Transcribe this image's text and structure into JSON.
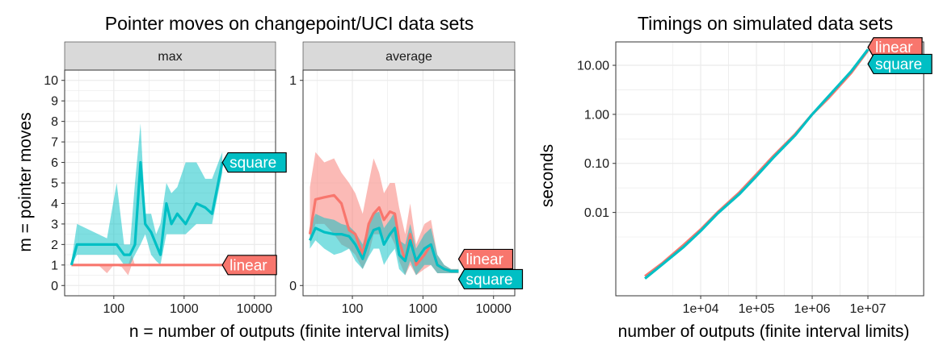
{
  "colors": {
    "linear": "#F8766D",
    "square": "#00BFC4",
    "strip": "#D9D9D9",
    "grid": "#EBEBEB"
  },
  "chart_data": [
    {
      "type": "line",
      "title": "Pointer moves on changepoint/UCI data sets",
      "xlabel": "n = number of outputs (finite interval limits)",
      "ylabel": "m = pointer moves",
      "xscale": "log10",
      "xlim": [
        20,
        20000
      ],
      "xticks": [
        100,
        1000,
        10000
      ],
      "xtick_labels": [
        "100",
        "1000",
        "10000"
      ],
      "grid": true,
      "legend": "direct labels",
      "panels": [
        {
          "strip": "max",
          "ylim": [
            -0.5,
            10.5
          ],
          "yticks": [
            0,
            1,
            2,
            3,
            4,
            5,
            6,
            7,
            8,
            9,
            10
          ],
          "ytick_labels": [
            "0",
            "1",
            "2",
            "3",
            "4",
            "5",
            "6",
            "7",
            "8",
            "9",
            "10"
          ],
          "series": [
            {
              "name": "linear",
              "x": [
                25,
                3500
              ],
              "y": [
                1,
                1
              ],
              "band_x": [
                25,
                60,
                80,
                100,
                130,
                160,
                180,
                200,
                3500
              ],
              "band_lo": [
                1,
                1,
                0.6,
                1,
                0.9,
                0.5,
                1,
                1,
                1
              ],
              "band_hi": [
                1,
                1,
                1,
                1,
                1,
                1,
                1.5,
                1,
                1
              ],
              "end_label": "linear"
            },
            {
              "name": "square",
              "x": [
                25,
                30,
                80,
                110,
                140,
                170,
                200,
                240,
                280,
                340,
                400,
                460,
                560,
                660,
                800,
                1050,
                1500,
                2000,
                2500,
                3500
              ],
              "y": [
                1,
                2,
                2,
                2,
                1.5,
                1.5,
                2,
                6,
                3,
                2.6,
                2,
                1.5,
                4,
                3,
                3.5,
                3,
                4,
                3.8,
                3.5,
                6
              ],
              "band_x": [
                25,
                30,
                80,
                110,
                140,
                170,
                200,
                240,
                280,
                340,
                400,
                460,
                560,
                660,
                800,
                1050,
                1500,
                2000,
                2500,
                3500
              ],
              "band_lo": [
                1,
                1.5,
                1.5,
                1.5,
                1,
                1,
                1.5,
                2,
                2.5,
                1.5,
                1.2,
                1,
                2.5,
                2.5,
                2.5,
                2.5,
                3,
                3,
                3,
                5.5
              ],
              "band_hi": [
                1.2,
                3,
                2.3,
                5,
                2,
                2,
                5,
                7.9,
                3.5,
                3.5,
                2.5,
                3,
                5,
                4.5,
                4.8,
                6,
                6,
                5.2,
                5.2,
                6.5
              ],
              "end_label": "square"
            }
          ]
        },
        {
          "strip": "average",
          "ylim": [
            -0.05,
            1.05
          ],
          "yticks": [
            0,
            1
          ],
          "ytick_labels": [
            "0",
            "1"
          ],
          "series": [
            {
              "name": "linear",
              "x": [
                25,
                30,
                40,
                55,
                70,
                90,
                110,
                140,
                170,
                200,
                240,
                280,
                340,
                400,
                460,
                560,
                660,
                800,
                1050,
                1300,
                1600,
                2000,
                2500,
                3200
              ],
              "y": [
                0.25,
                0.42,
                0.43,
                0.44,
                0.4,
                0.27,
                0.25,
                0.15,
                0.3,
                0.35,
                0.38,
                0.32,
                0.36,
                0.35,
                0.22,
                0.12,
                0.25,
                0.1,
                0.15,
                0.2,
                0.1,
                0.08,
                0.07,
                0.07
              ],
              "band_x": [
                25,
                30,
                40,
                55,
                70,
                90,
                110,
                140,
                170,
                200,
                240,
                280,
                340,
                400,
                460,
                560,
                660,
                800,
                1050,
                1300,
                1600,
                2000,
                2500,
                3200
              ],
              "band_lo": [
                0.2,
                0.3,
                0.3,
                0.25,
                0.2,
                0.18,
                0.15,
                0.08,
                0.15,
                0.25,
                0.25,
                0.22,
                0.25,
                0.2,
                0.12,
                0.05,
                0.1,
                0.05,
                0.08,
                0.1,
                0.06,
                0.06,
                0.06,
                0.06
              ],
              "band_hi": [
                0.48,
                0.65,
                0.6,
                0.62,
                0.55,
                0.5,
                0.45,
                0.35,
                0.5,
                0.62,
                0.55,
                0.45,
                0.5,
                0.5,
                0.38,
                0.25,
                0.4,
                0.2,
                0.3,
                0.32,
                0.15,
                0.1,
                0.08,
                0.08
              ],
              "end_label": "linear"
            },
            {
              "name": "square",
              "x": [
                25,
                30,
                40,
                55,
                70,
                90,
                110,
                140,
                170,
                200,
                240,
                280,
                340,
                400,
                460,
                560,
                660,
                800,
                1050,
                1300,
                1600,
                2000,
                2500,
                3200
              ],
              "y": [
                0.22,
                0.28,
                0.26,
                0.25,
                0.25,
                0.24,
                0.2,
                0.13,
                0.22,
                0.27,
                0.28,
                0.2,
                0.25,
                0.28,
                0.15,
                0.12,
                0.22,
                0.12,
                0.18,
                0.2,
                0.1,
                0.08,
                0.07,
                0.07
              ],
              "band_x": [
                25,
                30,
                40,
                55,
                70,
                90,
                110,
                140,
                170,
                200,
                240,
                280,
                340,
                400,
                460,
                560,
                660,
                800,
                1050,
                1300,
                1600,
                2000,
                2500,
                3200
              ],
              "band_lo": [
                0.18,
                0.22,
                0.18,
                0.15,
                0.16,
                0.18,
                0.12,
                0.08,
                0.14,
                0.18,
                0.18,
                0.1,
                0.15,
                0.18,
                0.08,
                0.05,
                0.12,
                0.05,
                0.1,
                0.1,
                0.06,
                0.06,
                0.06,
                0.06
              ],
              "band_hi": [
                0.28,
                0.35,
                0.33,
                0.32,
                0.3,
                0.29,
                0.26,
                0.2,
                0.3,
                0.35,
                0.36,
                0.28,
                0.32,
                0.36,
                0.22,
                0.2,
                0.3,
                0.18,
                0.25,
                0.28,
                0.15,
                0.1,
                0.08,
                0.08
              ],
              "end_label": "square"
            }
          ]
        }
      ]
    },
    {
      "type": "line",
      "title": "Timings on simulated data sets",
      "xlabel": "number of outputs (finite interval limits)",
      "ylabel": "seconds",
      "xscale": "log10",
      "yscale": "log10",
      "xlim": [
        300,
        100000000
      ],
      "ylim": [
        0.0002,
        30
      ],
      "xticks": [
        10000,
        100000,
        1000000,
        10000000
      ],
      "xtick_labels": [
        "1e+04",
        "1e+05",
        "1e+06",
        "1e+07"
      ],
      "yticks": [
        0.01,
        0.1,
        1,
        10
      ],
      "ytick_labels": [
        "0.01",
        "0.10",
        "1.00",
        "10.00"
      ],
      "grid": true,
      "legend": "direct labels",
      "series": [
        {
          "name": "linear",
          "x": [
            1000,
            2000,
            5000,
            10000,
            20000,
            50000,
            100000,
            200000,
            500000,
            1000000,
            2000000,
            5000000,
            10000000
          ],
          "y": [
            0.0005,
            0.0009,
            0.0022,
            0.0045,
            0.01,
            0.026,
            0.06,
            0.14,
            0.4,
            1,
            2.2,
            7,
            20
          ],
          "end_label": "linear"
        },
        {
          "name": "square",
          "x": [
            1000,
            2000,
            5000,
            10000,
            20000,
            50000,
            100000,
            200000,
            500000,
            1000000,
            2000000,
            5000000,
            10000000
          ],
          "y": [
            0.00045,
            0.00085,
            0.002,
            0.0042,
            0.0095,
            0.024,
            0.055,
            0.13,
            0.38,
            1,
            2.4,
            7.5,
            21
          ],
          "end_label": "square"
        }
      ]
    }
  ]
}
